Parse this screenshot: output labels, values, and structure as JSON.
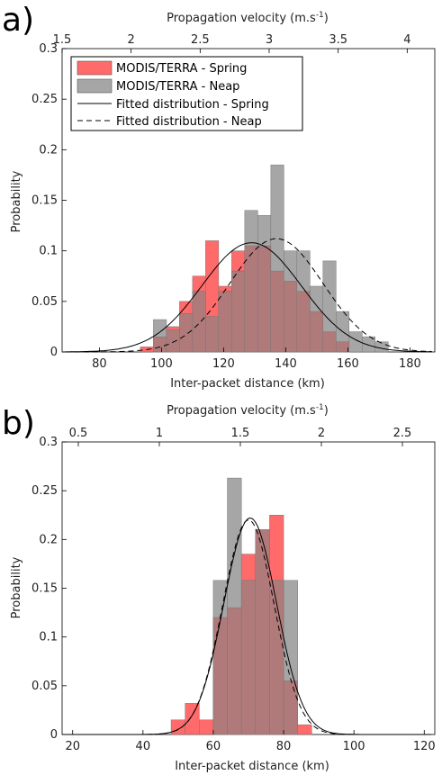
{
  "figure": {
    "panels": [
      "a)",
      "b)"
    ]
  },
  "colors": {
    "spring": "#ff6a6a",
    "neap": "#a6a6a6",
    "overlap": "#b07a7a",
    "fit": "#000000"
  },
  "chart_data": [
    {
      "type": "bar",
      "panel": "a)",
      "xlabel": "Inter-packet distance (km)",
      "ylabel": "Probability",
      "top_xlabel": "Propagation velocity (m.s",
      "top_xlabel_sup": "-1",
      "top_xlabel_close": ")",
      "xlim": [
        68,
        188
      ],
      "ylim": [
        0,
        0.3
      ],
      "xticks": [
        80,
        100,
        120,
        140,
        160,
        180
      ],
      "yticks": [
        "0",
        "0.05",
        "0.1",
        "0.15",
        "0.2",
        "0.25",
        "0.3"
      ],
      "top_xlim": [
        1.5,
        4.2
      ],
      "top_xticks": [
        "1.5",
        "2",
        "2.5",
        "3",
        "3.5",
        "4"
      ],
      "bin_width": 4.2,
      "legend": [
        "MODIS/TERRA - Spring",
        "MODIS/TERRA - Neap",
        "Fitted distribution - Spring",
        "Fitted distribution - Neap"
      ],
      "series": [
        {
          "name": "MODIS/TERRA - Spring",
          "bin_left": [
            93.2,
            97.4,
            101.6,
            105.8,
            110,
            114.2,
            118.4,
            122.6,
            126.8,
            131,
            135.2,
            139.4,
            143.6,
            147.8,
            152,
            156.2
          ],
          "values": [
            0.005,
            0.015,
            0.025,
            0.05,
            0.075,
            0.11,
            0.065,
            0.1,
            0.105,
            0.105,
            0.08,
            0.07,
            0.06,
            0.04,
            0.02,
            0.01
          ]
        },
        {
          "name": "MODIS/TERRA - Neap",
          "bin_left": [
            97.4,
            101.6,
            105.8,
            110,
            114.2,
            118.4,
            122.6,
            126.8,
            131,
            135.2,
            139.4,
            143.6,
            147.8,
            152,
            156.2,
            160.4,
            164.6,
            168.8
          ],
          "values": [
            0.032,
            0.022,
            0.038,
            0.06,
            0.035,
            0.06,
            0.08,
            0.14,
            0.135,
            0.185,
            0.1,
            0.1,
            0.065,
            0.09,
            0.04,
            0.02,
            0.015,
            0.01
          ]
        },
        {
          "name": "Fitted distribution - Spring",
          "kind": "normal",
          "mean": 129,
          "sd": 16,
          "peak": 0.108
        },
        {
          "name": "Fitted distribution - Neap",
          "kind": "normal",
          "mean": 137,
          "sd": 15,
          "peak": 0.112
        }
      ]
    },
    {
      "type": "bar",
      "panel": "b)",
      "xlabel": "Inter-packet distance (km)",
      "ylabel": "Probability",
      "top_xlabel": "Propagation velocity (m.s",
      "top_xlabel_sup": "-1",
      "top_xlabel_close": ")",
      "xlim": [
        17,
        123
      ],
      "ylim": [
        0,
        0.3
      ],
      "xticks": [
        20,
        40,
        60,
        80,
        100,
        120
      ],
      "yticks": [
        "0",
        "0.05",
        "0.1",
        "0.15",
        "0.2",
        "0.25",
        "0.3"
      ],
      "top_xlim": [
        0.4,
        2.7
      ],
      "top_xticks": [
        "0.5",
        "1",
        "1.5",
        "2",
        "2.5"
      ],
      "bin_width": 4,
      "series": [
        {
          "name": "MODIS/TERRA - Spring",
          "bin_left": [
            48,
            52,
            56,
            60,
            64,
            68,
            72,
            76,
            80,
            84
          ],
          "values": [
            0.015,
            0.032,
            0.015,
            0.12,
            0.13,
            0.185,
            0.21,
            0.225,
            0.055,
            0.01
          ]
        },
        {
          "name": "MODIS/TERRA - Neap",
          "bin_left": [
            60,
            64,
            68,
            72,
            76,
            80
          ],
          "values": [
            0.158,
            0.263,
            0.158,
            0.21,
            0.158,
            0.158
          ]
        },
        {
          "name": "Fitted distribution - Spring",
          "kind": "normal",
          "mean": 70.5,
          "sd": 7.5,
          "peak": 0.222
        },
        {
          "name": "Fitted distribution - Neap",
          "kind": "normal",
          "mean": 70,
          "sd": 7.3,
          "peak": 0.22
        }
      ]
    }
  ]
}
